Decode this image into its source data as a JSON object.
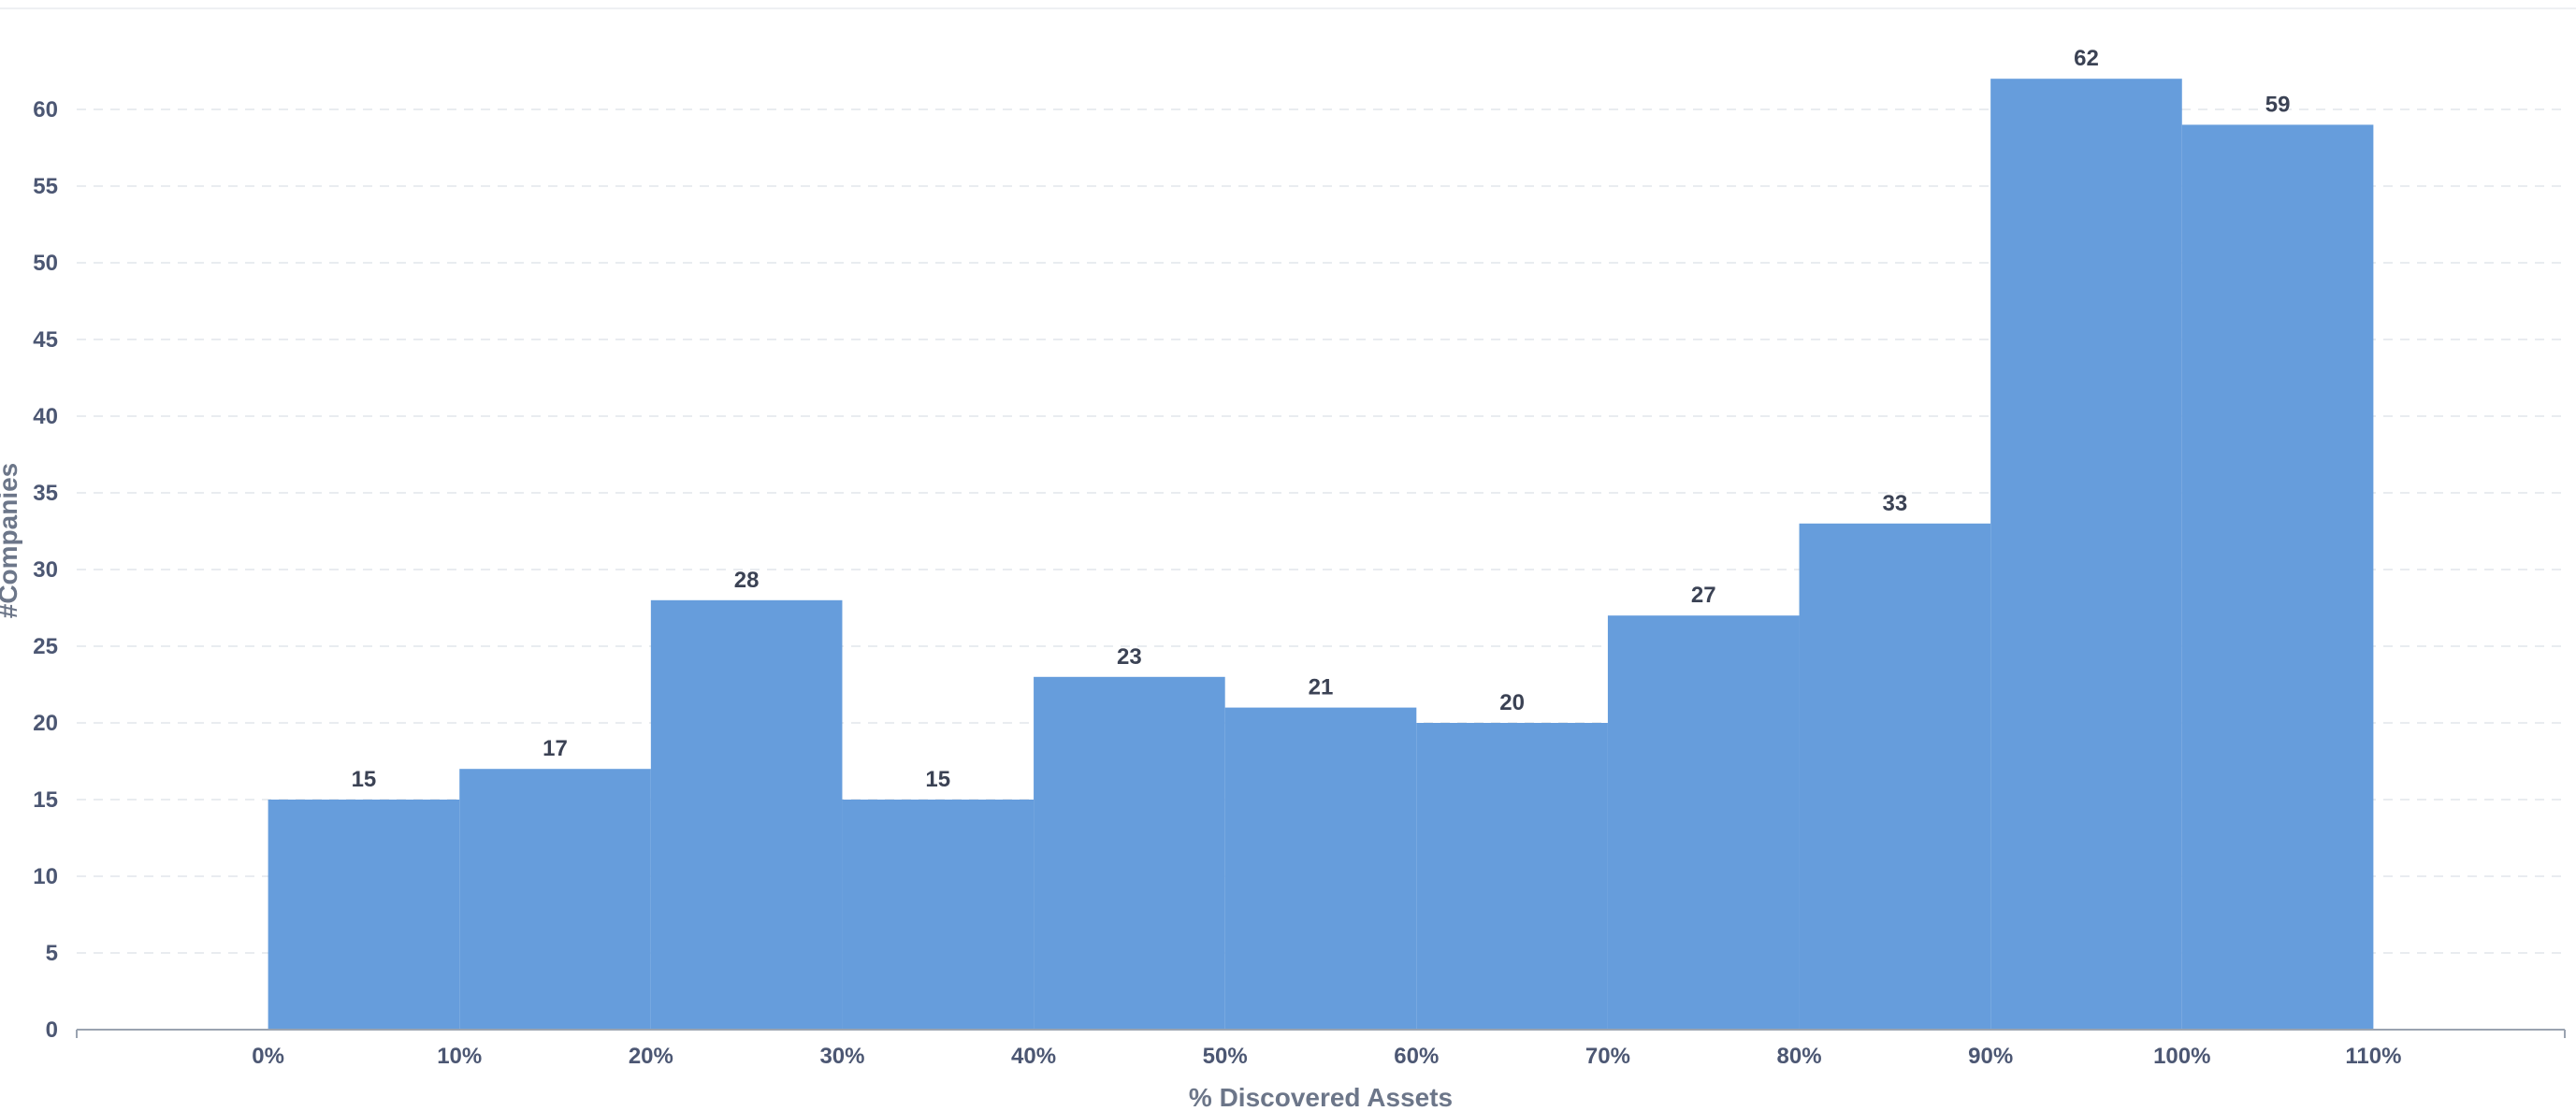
{
  "chart_data": {
    "type": "bar",
    "title": "",
    "xlabel": "% Discovered Assets",
    "ylabel": "#Companies",
    "x_ticks": [
      "0%",
      "10%",
      "20%",
      "30%",
      "40%",
      "50%",
      "60%",
      "70%",
      "80%",
      "90%",
      "100%",
      "110%"
    ],
    "bins": [
      {
        "from": 0,
        "to": 10,
        "value": 15
      },
      {
        "from": 10,
        "to": 20,
        "value": 17
      },
      {
        "from": 20,
        "to": 30,
        "value": 28
      },
      {
        "from": 30,
        "to": 40,
        "value": 15
      },
      {
        "from": 40,
        "to": 50,
        "value": 23
      },
      {
        "from": 50,
        "to": 60,
        "value": 21
      },
      {
        "from": 60,
        "to": 70,
        "value": 20
      },
      {
        "from": 70,
        "to": 80,
        "value": 27
      },
      {
        "from": 80,
        "to": 90,
        "value": 33
      },
      {
        "from": 90,
        "to": 100,
        "value": 62
      },
      {
        "from": 100,
        "to": 110,
        "value": 59
      }
    ],
    "data_labels": [
      "15",
      "17",
      "28",
      "15",
      "23",
      "21",
      "20",
      "27",
      "33",
      "62",
      "59"
    ],
    "y_ticks": [
      "0",
      "5",
      "10",
      "15",
      "20",
      "25",
      "30",
      "35",
      "40",
      "45",
      "50",
      "55",
      "60"
    ],
    "ylim": [
      0,
      65
    ],
    "xlim": [
      -10,
      120
    ],
    "grid": "horizontal-dashed",
    "legend": "none",
    "colors": {
      "bar": "#669ddc",
      "axis": "#9aa3b0",
      "grid": "#e9ecf0",
      "tick_text": "#4c5773",
      "label_text": "#3b4254",
      "title_text": "#6c7689"
    }
  }
}
